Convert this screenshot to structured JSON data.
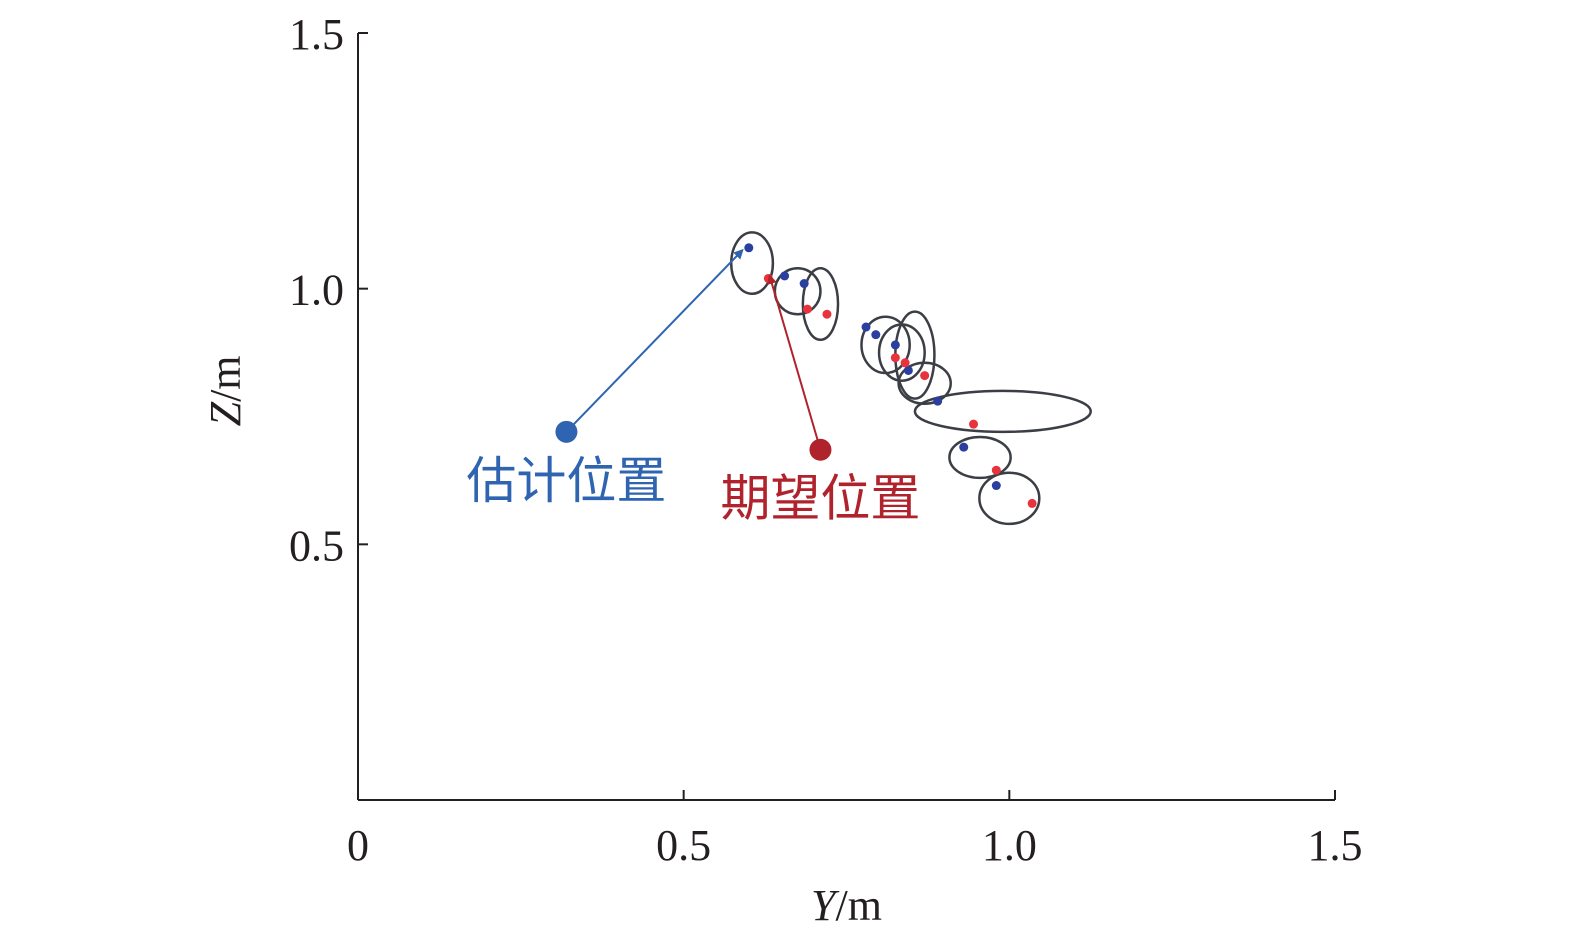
{
  "chart_data": {
    "type": "scatter",
    "xlabel": {
      "var": "Y",
      "unit": "/m"
    },
    "ylabel": {
      "var": "Z",
      "unit": "/m"
    },
    "xlim": [
      0,
      1.5
    ],
    "ylim": [
      0,
      1.5
    ],
    "x_ticks": [
      {
        "value": 0,
        "label": "0"
      },
      {
        "value": 0.5,
        "label": "0.5"
      },
      {
        "value": 1.0,
        "label": "1.0"
      },
      {
        "value": 1.5,
        "label": "1.5"
      }
    ],
    "y_ticks": [
      {
        "value": 0.5,
        "label": "0.5"
      },
      {
        "value": 1.0,
        "label": "1.0"
      },
      {
        "value": 1.5,
        "label": "1.5"
      }
    ],
    "grid": false,
    "colors": {
      "estimated": "#2b3f9e",
      "expected": "#e8323c",
      "ellipse": "#3b3f45",
      "axis": "#231f20",
      "estimated_label": "#2e64b0",
      "expected_label": "#b0222c"
    },
    "series": [
      {
        "key": "estimated",
        "points": [
          {
            "x": 0.6,
            "y": 1.08
          },
          {
            "x": 0.655,
            "y": 1.025
          },
          {
            "x": 0.685,
            "y": 1.01
          },
          {
            "x": 0.78,
            "y": 0.925
          },
          {
            "x": 0.795,
            "y": 0.91
          },
          {
            "x": 0.825,
            "y": 0.89
          },
          {
            "x": 0.845,
            "y": 0.84
          },
          {
            "x": 0.89,
            "y": 0.78
          },
          {
            "x": 0.93,
            "y": 0.69
          },
          {
            "x": 0.98,
            "y": 0.615
          }
        ]
      },
      {
        "key": "expected",
        "points": [
          {
            "x": 0.63,
            "y": 1.02
          },
          {
            "x": 0.69,
            "y": 0.96
          },
          {
            "x": 0.72,
            "y": 0.95
          },
          {
            "x": 0.825,
            "y": 0.865
          },
          {
            "x": 0.84,
            "y": 0.855
          },
          {
            "x": 0.87,
            "y": 0.83
          },
          {
            "x": 0.945,
            "y": 0.735
          },
          {
            "x": 0.98,
            "y": 0.645
          },
          {
            "x": 1.035,
            "y": 0.58
          }
        ]
      }
    ],
    "ellipses": [
      {
        "cx": 0.605,
        "cy": 1.05,
        "rx": 0.032,
        "ry": 0.06
      },
      {
        "cx": 0.675,
        "cy": 0.995,
        "rx": 0.035,
        "ry": 0.045
      },
      {
        "cx": 0.71,
        "cy": 0.97,
        "rx": 0.027,
        "ry": 0.07
      },
      {
        "cx": 0.81,
        "cy": 0.89,
        "rx": 0.037,
        "ry": 0.055
      },
      {
        "cx": 0.835,
        "cy": 0.875,
        "rx": 0.035,
        "ry": 0.055
      },
      {
        "cx": 0.855,
        "cy": 0.87,
        "rx": 0.03,
        "ry": 0.085
      },
      {
        "cx": 0.87,
        "cy": 0.815,
        "rx": 0.04,
        "ry": 0.04
      },
      {
        "cx": 0.99,
        "cy": 0.76,
        "rx": 0.135,
        "ry": 0.04
      },
      {
        "cx": 0.955,
        "cy": 0.67,
        "rx": 0.047,
        "ry": 0.04
      },
      {
        "cx": 1.0,
        "cy": 0.59,
        "rx": 0.046,
        "ry": 0.05
      }
    ],
    "annotations": [
      {
        "key": "estimated",
        "text": "估计位置",
        "from": {
          "x": 0.32,
          "y": 0.72
        },
        "to": {
          "x": 0.59,
          "y": 1.075
        }
      },
      {
        "key": "expected",
        "text": "期望位置",
        "from": {
          "x": 0.71,
          "y": 0.685
        },
        "to": {
          "x": 0.632,
          "y": 1.025
        }
      }
    ]
  }
}
